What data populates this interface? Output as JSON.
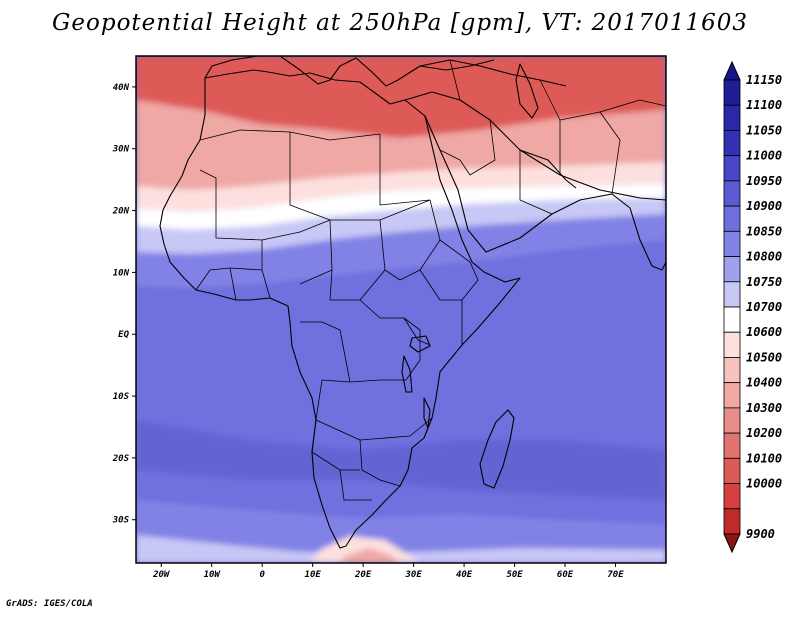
{
  "title": "Geopotential Height at 250hPa [gpm], VT: 2017011603",
  "credit": "GrADS: IGES/COLA",
  "map": {
    "lon_range": [
      -25,
      80
    ],
    "lat_range": [
      -37,
      45
    ],
    "x_ticks": [
      {
        "lon": -20,
        "label": "20W"
      },
      {
        "lon": -10,
        "label": "10W"
      },
      {
        "lon": 0,
        "label": "0"
      },
      {
        "lon": 10,
        "label": "10E"
      },
      {
        "lon": 20,
        "label": "20E"
      },
      {
        "lon": 30,
        "label": "30E"
      },
      {
        "lon": 40,
        "label": "40E"
      },
      {
        "lon": 50,
        "label": "50E"
      },
      {
        "lon": 60,
        "label": "60E"
      },
      {
        "lon": 70,
        "label": "70E"
      }
    ],
    "y_ticks": [
      {
        "lat": 40,
        "label": "40N"
      },
      {
        "lat": 30,
        "label": "30N"
      },
      {
        "lat": 20,
        "label": "20N"
      },
      {
        "lat": 10,
        "label": "10N"
      },
      {
        "lat": 0,
        "label": "EQ"
      },
      {
        "lat": -10,
        "label": "10S"
      },
      {
        "lat": -20,
        "label": "20S"
      },
      {
        "lat": -30,
        "label": "30S"
      }
    ]
  },
  "colorbar": {
    "top_arrow_color": "#14148c",
    "bottom_arrow_color": "#8c1414",
    "levels": [
      {
        "label": "11150",
        "color": "#1e1e96"
      },
      {
        "label": "11100",
        "color": "#2828a8"
      },
      {
        "label": "11050",
        "color": "#3232b8"
      },
      {
        "label": "11000",
        "color": "#4646c6"
      },
      {
        "label": "10950",
        "color": "#5a5ad2"
      },
      {
        "label": "10900",
        "color": "#6e6edc"
      },
      {
        "label": "10850",
        "color": "#8282e6"
      },
      {
        "label": "10800",
        "color": "#a0a0ee"
      },
      {
        "label": "10750",
        "color": "#c8c8f6"
      },
      {
        "label": "10700",
        "color": "#ffffff"
      },
      {
        "label": "10600",
        "color": "#fde0de"
      },
      {
        "label": "10500",
        "color": "#f6c2be"
      },
      {
        "label": "10400",
        "color": "#f0a8a4"
      },
      {
        "label": "10300",
        "color": "#e88e8a"
      },
      {
        "label": "10200",
        "color": "#e27470"
      },
      {
        "label": "10100",
        "color": "#de5a56"
      },
      {
        "label": "10000",
        "color": "#d64040"
      },
      {
        "label": "9900",
        "color": "#c02a2a"
      }
    ]
  },
  "field_colors": {
    "deep_red": "#c43030",
    "red": "#de5a56",
    "light_red": "#f0a8a4",
    "pink": "#fde0de",
    "white": "#ffffff",
    "light_blue": "#c8c8f6",
    "mid_blue": "#8282e6",
    "blue": "#7070de",
    "deep_blue": "#6464d4"
  }
}
